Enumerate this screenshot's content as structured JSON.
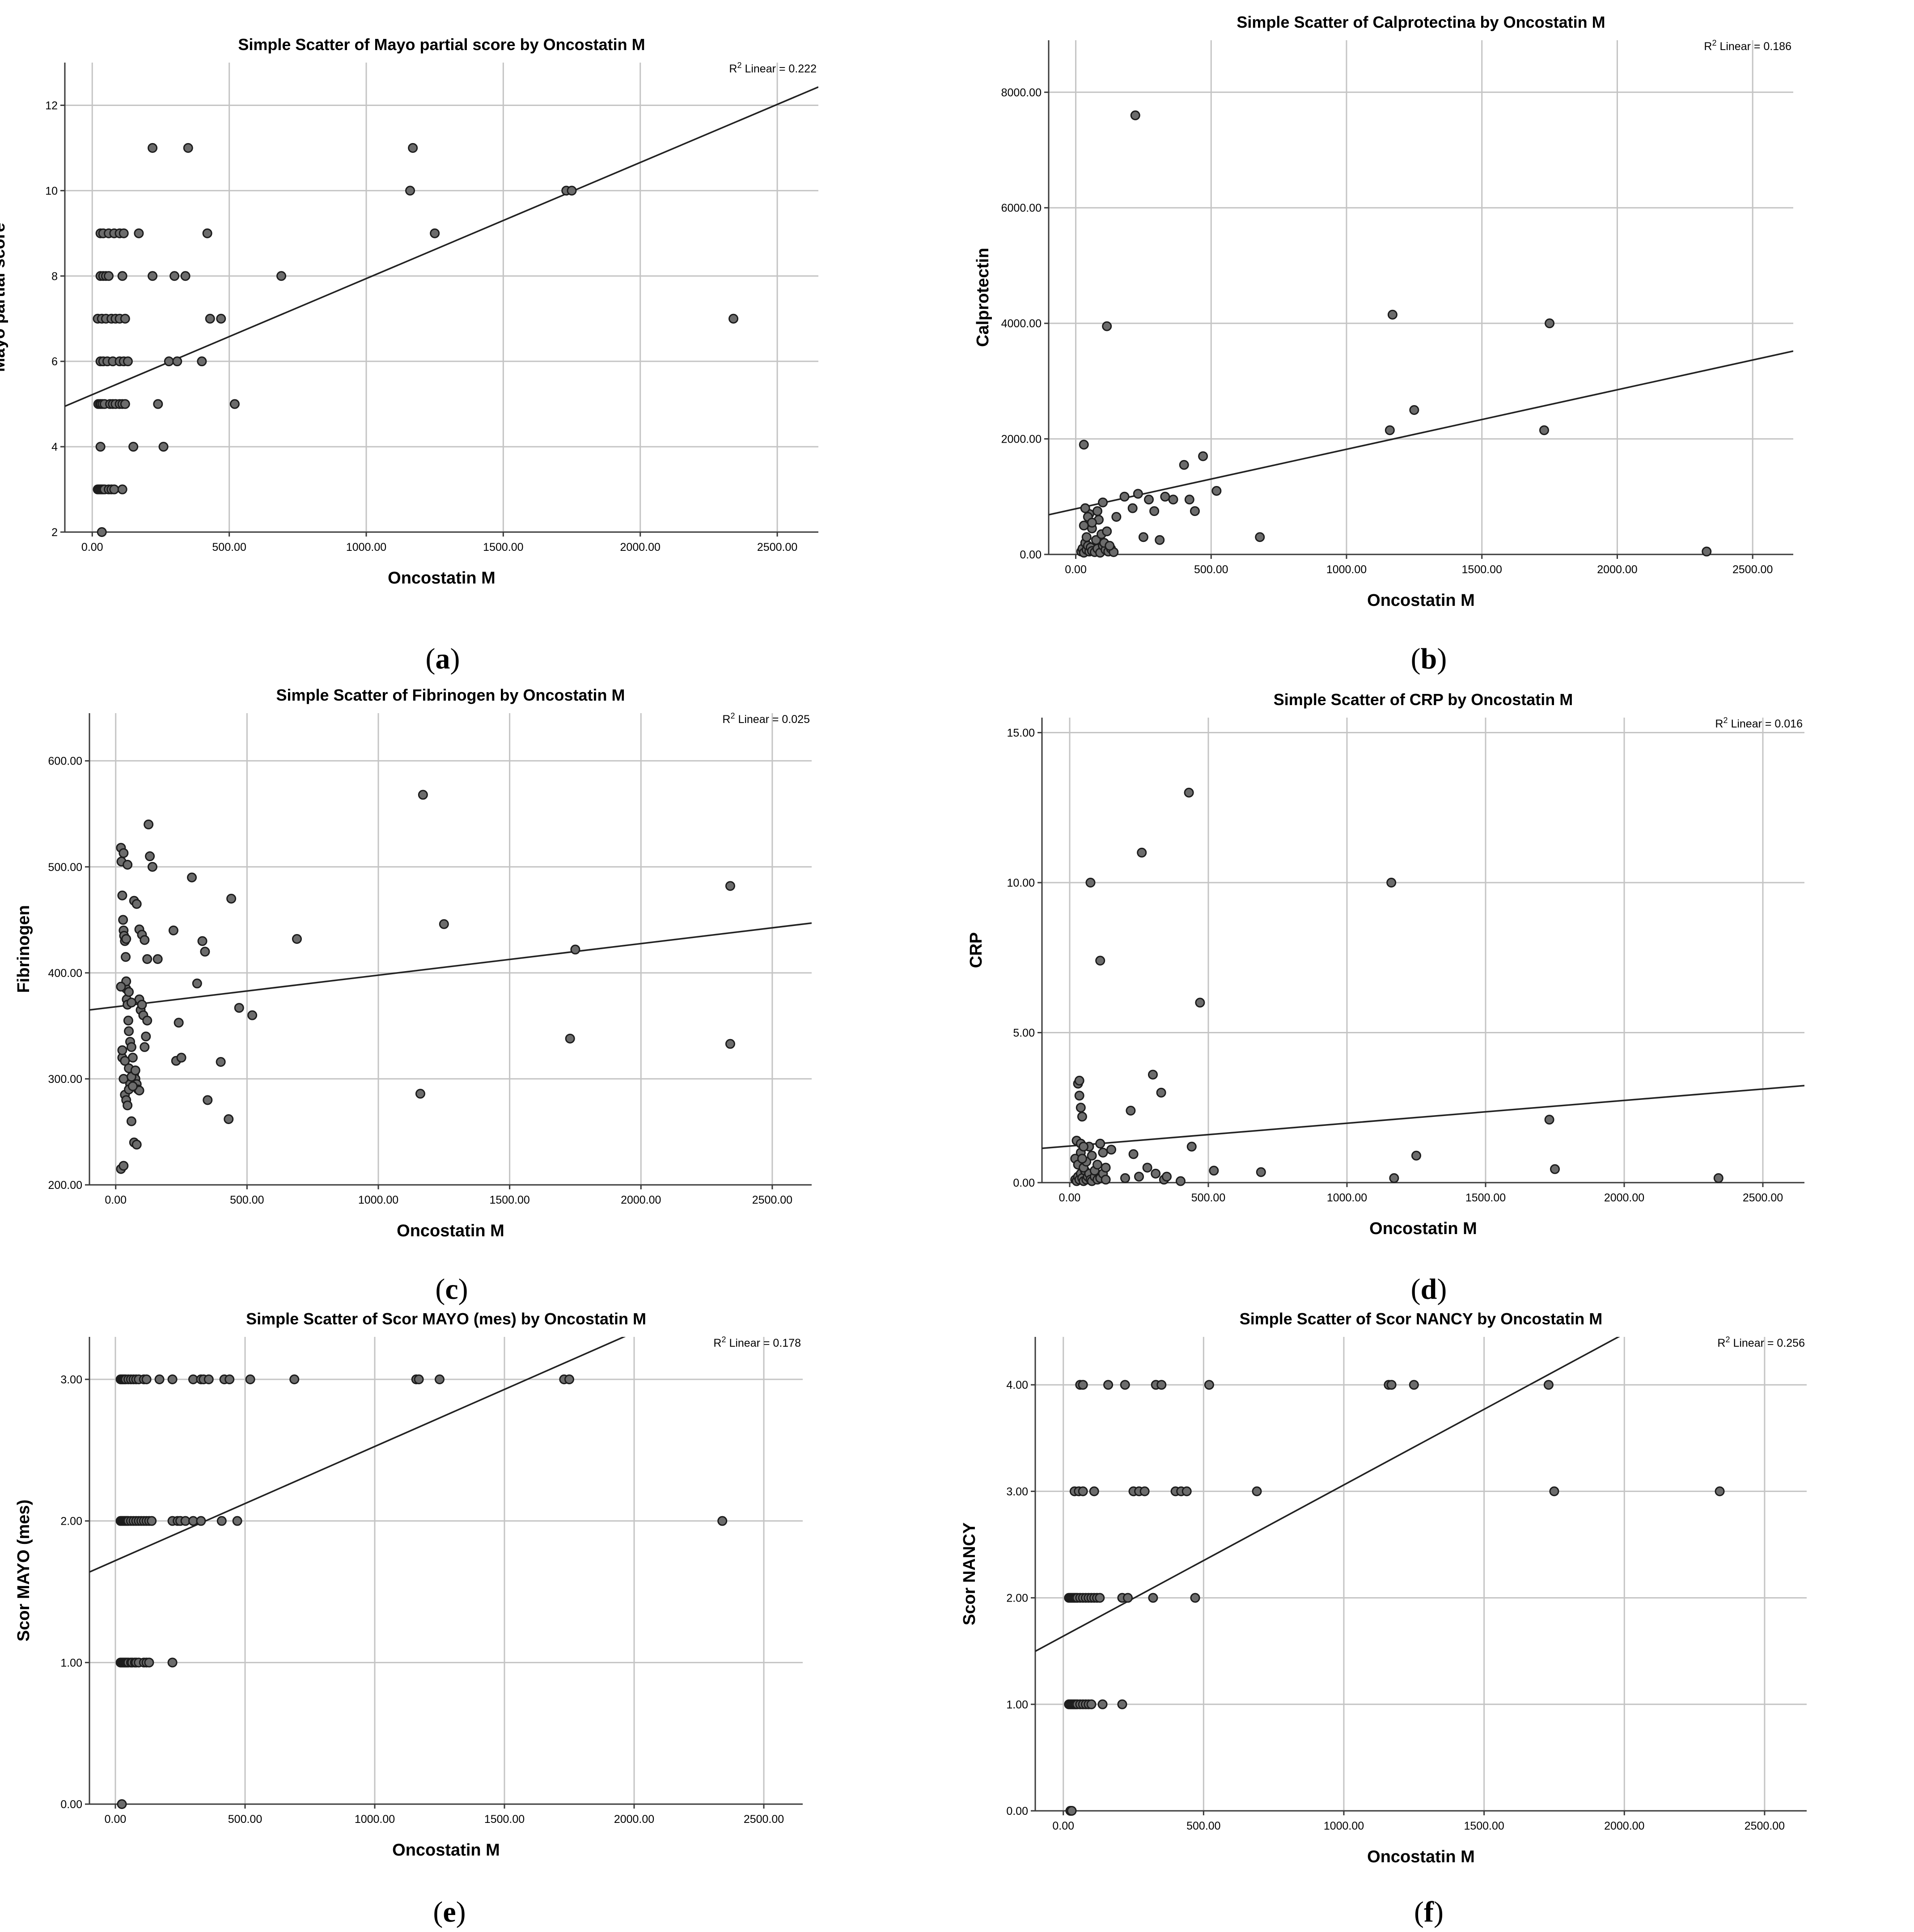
{
  "chart_data": [
    {
      "id": "a",
      "type": "scatter",
      "caption": "a",
      "title": "Simple Scatter of Mayo partial score by Oncostatin M",
      "xlabel": "Oncostatin M",
      "ylabel": "Mayo partial score",
      "xlim": [
        -100,
        2650
      ],
      "ylim": [
        2,
        13
      ],
      "xticks": [
        0,
        500,
        1000,
        1500,
        2000,
        2500
      ],
      "xtick_labels": [
        "0.00",
        "500.00",
        "1000.00",
        "1500.00",
        "2000.00",
        "2500.00"
      ],
      "yticks": [
        2,
        4,
        6,
        8,
        10,
        12
      ],
      "ytick_labels": [
        "2",
        "4",
        "6",
        "8",
        "10",
        "12"
      ],
      "r2_prefix": "R",
      "r2_sup": "2",
      "r2_text": " Linear = 0.222",
      "fit": {
        "intercept": 5.22,
        "slope": 0.00272
      },
      "x": [
        20,
        25,
        25,
        30,
        30,
        35,
        40,
        45,
        60,
        70,
        80,
        110,
        22,
        28,
        32,
        38,
        45,
        65,
        75,
        85,
        100,
        110,
        120,
        30,
        40,
        55,
        75,
        100,
        115,
        130,
        20,
        35,
        50,
        70,
        85,
        100,
        120,
        30,
        40,
        50,
        60,
        110,
        30,
        40,
        60,
        80,
        100,
        115,
        150,
        170,
        220,
        220,
        240,
        260,
        280,
        300,
        310,
        340,
        350,
        400,
        420,
        430,
        470,
        520,
        690,
        1160,
        1170,
        1250,
        1730,
        1750,
        2340,
        30,
        35
      ],
      "y": [
        3,
        3,
        3,
        3,
        3,
        3,
        3,
        3,
        3,
        3,
        3,
        3,
        5,
        5,
        5,
        5,
        5,
        5,
        5,
        5,
        5,
        5,
        5,
        6,
        6,
        6,
        6,
        6,
        6,
        6,
        7,
        7,
        7,
        7,
        7,
        7,
        7,
        8,
        8,
        8,
        8,
        8,
        9,
        9,
        9,
        9,
        9,
        9,
        4,
        9,
        11,
        8,
        5,
        4,
        6,
        8,
        6,
        8,
        11,
        6,
        9,
        7,
        7,
        5,
        8,
        10,
        11,
        9,
        10,
        10,
        7,
        4,
        2
      ]
    },
    {
      "id": "b",
      "type": "scatter",
      "caption": "b",
      "title": "Simple Scatter of Calprotectina by Oncostatin M",
      "xlabel": "Oncostatin M",
      "ylabel": "Calprotectin",
      "xlim": [
        -100,
        2650
      ],
      "ylim": [
        0,
        8900
      ],
      "xticks": [
        0,
        500,
        1000,
        1500,
        2000,
        2500
      ],
      "xtick_labels": [
        "0.00",
        "500.00",
        "1000.00",
        "1500.00",
        "2000.00",
        "2500.00"
      ],
      "yticks": [
        0,
        2000,
        4000,
        6000,
        8000
      ],
      "ytick_labels": [
        "0.00",
        "2000.00",
        "4000.00",
        "6000.00",
        "8000.00"
      ],
      "r2_prefix": "R",
      "r2_sup": "2",
      "r2_text": " Linear = 0.186",
      "fit": {
        "intercept": 790,
        "slope": 1.03
      },
      "x": [
        20,
        25,
        30,
        35,
        40,
        45,
        50,
        55,
        60,
        70,
        80,
        90,
        100,
        110,
        120,
        130,
        140,
        30,
        40,
        50,
        60,
        75,
        85,
        95,
        105,
        115,
        125,
        35,
        45,
        60,
        80,
        100,
        150,
        180,
        210,
        230,
        250,
        270,
        290,
        310,
        330,
        360,
        400,
        420,
        440,
        470,
        520,
        680,
        30,
        115,
        220,
        1160,
        1170,
        1250,
        1730,
        1750,
        2330
      ],
      "y": [
        50,
        100,
        30,
        200,
        80,
        150,
        50,
        120,
        60,
        40,
        100,
        30,
        150,
        80,
        50,
        100,
        40,
        500,
        300,
        700,
        450,
        250,
        600,
        350,
        200,
        400,
        150,
        800,
        650,
        550,
        750,
        900,
        650,
        1000,
        800,
        1050,
        300,
        950,
        750,
        250,
        1000,
        950,
        1550,
        950,
        750,
        1700,
        1100,
        300,
        1900,
        3950,
        7600,
        2150,
        4150,
        2500,
        2150,
        4000,
        50
      ]
    },
    {
      "id": "c",
      "type": "scatter",
      "caption": "c",
      "title": "Simple Scatter of Fibrinogen by Oncostatin M",
      "xlabel": "Oncostatin M",
      "ylabel": "Fibrinogen",
      "xlim": [
        -100,
        2650
      ],
      "ylim": [
        200,
        645
      ],
      "xticks": [
        0,
        500,
        1000,
        1500,
        2000,
        2500
      ],
      "xtick_labels": [
        "0.00",
        "500.00",
        "1000.00",
        "1500.00",
        "2000.00",
        "2500.00"
      ],
      "yticks": [
        200,
        300,
        400,
        500,
        600
      ],
      "ytick_labels": [
        "200.00",
        "300.00",
        "400.00",
        "500.00",
        "600.00"
      ],
      "r2_prefix": "R",
      "r2_sup": "2",
      "r2_text": " Linear = 0.025",
      "fit": {
        "intercept": 368,
        "slope": 0.0298
      },
      "x": [
        20,
        22,
        25,
        28,
        30,
        32,
        35,
        38,
        40,
        42,
        45,
        48,
        50,
        55,
        60,
        65,
        70,
        75,
        80,
        85,
        90,
        95,
        100,
        105,
        110,
        115,
        120,
        125,
        130,
        140,
        25,
        30,
        35,
        40,
        45,
        50,
        55,
        60,
        70,
        80,
        20,
        30,
        40,
        50,
        60,
        70,
        80,
        90,
        100,
        110,
        120,
        30,
        45,
        60,
        75,
        90,
        25,
        35,
        50,
        65,
        20,
        40,
        160,
        220,
        230,
        240,
        250,
        290,
        310,
        330,
        340,
        350,
        400,
        430,
        440,
        470,
        520,
        690,
        1160,
        1170,
        1250,
        1730,
        1750,
        2340
      ],
      "y": [
        518,
        505,
        473,
        450,
        440,
        435,
        430,
        415,
        385,
        375,
        370,
        355,
        345,
        335,
        330,
        320,
        305,
        300,
        295,
        290,
        375,
        365,
        370,
        360,
        330,
        340,
        355,
        540,
        510,
        500,
        320,
        300,
        285,
        280,
        275,
        310,
        295,
        260,
        240,
        238,
        215,
        218,
        392,
        382,
        372,
        468,
        465,
        441,
        436,
        431,
        413,
        513,
        502,
        302,
        308,
        289,
        327,
        317,
        290,
        293,
        387,
        432,
        413,
        440,
        317,
        353,
        320,
        490,
        390,
        430,
        420,
        280,
        316,
        262,
        470,
        367,
        360,
        432,
        286,
        568,
        446,
        338,
        422,
        482
      ],
      "y_extra_x": [
        2340
      ],
      "y_extra": [
        333
      ]
    },
    {
      "id": "d",
      "type": "scatter",
      "caption": "d",
      "title": "Simple Scatter of CRP by Oncostatin M",
      "xlabel": "Oncostatin M",
      "ylabel": "CRP",
      "xlim": [
        -100,
        2650
      ],
      "ylim": [
        0,
        15.5
      ],
      "xticks": [
        0,
        500,
        1000,
        1500,
        2000,
        2500
      ],
      "xtick_labels": [
        "0.00",
        "500.00",
        "1000.00",
        "1500.00",
        "2000.00",
        "2500.00"
      ],
      "yticks": [
        0,
        5,
        10,
        15
      ],
      "ytick_labels": [
        "0.00",
        "5.00",
        "10.00",
        "15.00"
      ],
      "r2_prefix": "R",
      "r2_sup": "2",
      "r2_text": " Linear = 0.016",
      "fit": {
        "intercept": 1.22,
        "slope": 0.00076
      },
      "x": [
        20,
        25,
        30,
        35,
        40,
        45,
        50,
        55,
        60,
        65,
        70,
        75,
        80,
        90,
        100,
        110,
        120,
        130,
        20,
        30,
        40,
        50,
        60,
        70,
        80,
        90,
        100,
        110,
        120,
        130,
        150,
        25,
        30,
        35,
        40,
        45,
        35,
        40,
        50,
        75,
        110,
        200,
        220,
        230,
        250,
        260,
        280,
        300,
        310,
        330,
        340,
        350,
        400,
        430,
        440,
        470,
        520,
        690,
        1160,
        1170,
        1250,
        1730,
        1750,
        2340,
        45
      ],
      "y": [
        0.1,
        0.05,
        0.2,
        0.1,
        0.3,
        0.15,
        0.05,
        0.4,
        0.1,
        0.2,
        0.3,
        0.1,
        0.05,
        0.2,
        0.1,
        0.15,
        0.3,
        0.1,
        0.8,
        0.6,
        1.0,
        0.5,
        0.7,
        1.2,
        0.9,
        0.4,
        0.6,
        1.3,
        1.0,
        0.5,
        1.1,
        1.4,
        3.3,
        2.9,
        2.5,
        2.2,
        3.4,
        1.3,
        1.2,
        10.0,
        7.4,
        0.15,
        2.4,
        0.95,
        0.2,
        11.0,
        0.5,
        3.6,
        0.3,
        3.0,
        0.1,
        0.2,
        0.05,
        13.0,
        1.2,
        6.0,
        0.4,
        0.35,
        10.0,
        0.15,
        0.9,
        2.1,
        0.45,
        0.15,
        0.8
      ]
    },
    {
      "id": "e",
      "type": "scatter",
      "caption": "e",
      "title": "Simple Scatter of Scor MAYO (mes) by Oncostatin M",
      "xlabel": "Oncostatin M",
      "ylabel": "Scor MAYO (mes)",
      "xlim": [
        -100,
        2650
      ],
      "ylim": [
        0,
        3.3
      ],
      "xticks": [
        0,
        500,
        1000,
        1500,
        2000,
        2500
      ],
      "xtick_labels": [
        "0.00",
        "500.00",
        "1000.00",
        "1500.00",
        "2000.00",
        "2500.00"
      ],
      "yticks": [
        0,
        1,
        2,
        3
      ],
      "ytick_labels": [
        "0.00",
        "1.00",
        "2.00",
        "3.00"
      ],
      "r2_prefix": "R",
      "r2_sup": "2",
      "r2_text": " Linear = 0.178",
      "fit": {
        "intercept": 1.72,
        "slope": 0.000806
      },
      "x": [
        20,
        25,
        30,
        35,
        40,
        45,
        50,
        60,
        65,
        75,
        80,
        90,
        110,
        120,
        130,
        220,
        20,
        25,
        30,
        35,
        40,
        45,
        50,
        60,
        70,
        80,
        90,
        100,
        110,
        120,
        130,
        140,
        220,
        240,
        250,
        270,
        300,
        330,
        410,
        470,
        2340,
        20,
        25,
        30,
        35,
        40,
        50,
        60,
        70,
        80,
        90,
        110,
        120,
        170,
        220,
        300,
        330,
        340,
        360,
        420,
        440,
        520,
        690,
        1160,
        1170,
        1250,
        1730,
        1750,
        25
      ],
      "y": [
        1,
        1,
        1,
        1,
        1,
        1,
        1,
        1,
        1,
        1,
        1,
        1,
        1,
        1,
        1,
        1,
        2,
        2,
        2,
        2,
        2,
        2,
        2,
        2,
        2,
        2,
        2,
        2,
        2,
        2,
        2,
        2,
        2,
        2,
        2,
        2,
        2,
        2,
        2,
        2,
        2,
        3,
        3,
        3,
        3,
        3,
        3,
        3,
        3,
        3,
        3,
        3,
        3,
        3,
        3,
        3,
        3,
        3,
        3,
        3,
        3,
        3,
        3,
        3,
        3,
        3,
        3,
        3,
        0
      ]
    },
    {
      "id": "f",
      "type": "scatter",
      "caption": "f",
      "title": "Simple Scatter of Scor NANCY by Oncostatin M",
      "xlabel": "Oncostatin M",
      "ylabel": "Scor NANCY",
      "xlim": [
        -100,
        2650
      ],
      "ylim": [
        0,
        4.45
      ],
      "xticks": [
        0,
        500,
        1000,
        1500,
        2000,
        2500
      ],
      "xtick_labels": [
        "0.00",
        "500.00",
        "1000.00",
        "1500.00",
        "2000.00",
        "2500.00"
      ],
      "yticks": [
        0,
        1,
        2,
        3,
        4
      ],
      "ytick_labels": [
        "0.00",
        "1.00",
        "2.00",
        "3.00",
        "4.00"
      ],
      "r2_prefix": "R",
      "r2_sup": "2",
      "r2_text": " Linear = 0.256",
      "fit": {
        "intercept": 1.64,
        "slope": 0.00142
      },
      "x": [
        20,
        25,
        30,
        35,
        40,
        45,
        50,
        60,
        70,
        80,
        90,
        100,
        140,
        210,
        20,
        25,
        30,
        35,
        40,
        45,
        50,
        60,
        70,
        80,
        90,
        100,
        110,
        120,
        130,
        210,
        230,
        320,
        470,
        40,
        55,
        70,
        110,
        250,
        270,
        290,
        400,
        420,
        440,
        690,
        1750,
        2340,
        60,
        70,
        160,
        220,
        330,
        350,
        520,
        1160,
        1170,
        1250,
        1730,
        25,
        30
      ],
      "y": [
        1,
        1,
        1,
        1,
        1,
        1,
        1,
        1,
        1,
        1,
        1,
        1,
        1,
        1,
        2,
        2,
        2,
        2,
        2,
        2,
        2,
        2,
        2,
        2,
        2,
        2,
        2,
        2,
        2,
        2,
        2,
        2,
        2,
        3,
        3,
        3,
        3,
        3,
        3,
        3,
        3,
        3,
        3,
        3,
        3,
        3,
        4,
        4,
        4,
        4,
        4,
        4,
        4,
        4,
        4,
        4,
        4,
        0,
        0
      ]
    }
  ]
}
